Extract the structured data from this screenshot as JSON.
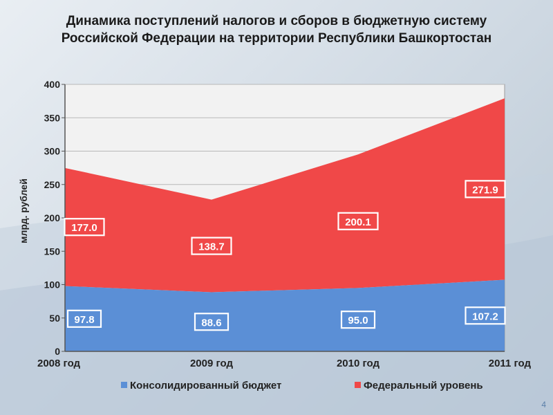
{
  "slide": {
    "title_line1": "Динамика поступлений налогов и сборов в бюджетную систему",
    "title_line2": "Российской Федерации на территории Республики Башкортостан",
    "page_number": "4"
  },
  "colors": {
    "consolidated": "#5b8fd6",
    "federal": "#f04848",
    "plot_bg": "#f2f2f2"
  },
  "chart_data": {
    "type": "area",
    "stacked": true,
    "title": "Динамика поступлений налогов и сборов в бюджетную систему Российской Федерации на территории Республики Башкортостан",
    "categories": [
      "2008 год",
      "2009 год",
      "2010 год",
      "2011 год"
    ],
    "ylabel": "млрд. рублей",
    "ylim": [
      0,
      400
    ],
    "yticks": [
      0,
      50,
      100,
      150,
      200,
      250,
      300,
      350,
      400
    ],
    "grid": true,
    "legend": "bottom",
    "series": [
      {
        "name": "Консолидированный бюджет",
        "values": [
          97.8,
          88.6,
          95.0,
          107.2
        ],
        "labels": [
          "97.8",
          "88.6",
          "95.0",
          "107.2"
        ]
      },
      {
        "name": "Федеральный уровень",
        "values": [
          177.0,
          138.7,
          200.1,
          271.9
        ],
        "labels": [
          "177.0",
          "138.7",
          "200.1",
          "271.9"
        ]
      }
    ]
  }
}
